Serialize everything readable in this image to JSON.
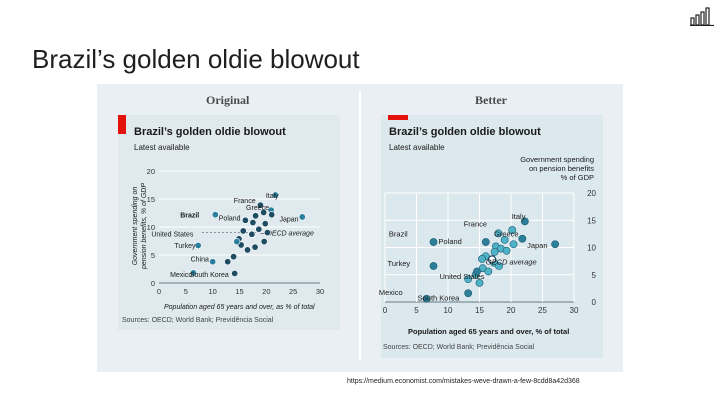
{
  "slide": {
    "title": "Brazil’s golden oldie blowout",
    "source_link": "https://medium.economist.com/mistakes-weve-drawn-a-few-8cdd8a42d368"
  },
  "colors": {
    "accent_red": "#e3120b",
    "dark_dot": "#1e4d63",
    "light_dot": "#4fb3c8",
    "panel_bg": "#e9eff2"
  },
  "logo_icon": "bar-chart-icon",
  "chart_data": [
    {
      "type": "scatter",
      "panel_heading": "Original",
      "title": "Brazil’s golden oldie blowout",
      "subtitle": "Latest available",
      "ylabel": "Government spending on pension benefits, % of GDP",
      "xlabel": "Population aged 65 years and over, as % of total",
      "source": "Sources: OECD; World Bank; Previdência Social",
      "xlim": [
        0,
        30
      ],
      "ylim": [
        0,
        20
      ],
      "x_ticks": [
        "0",
        "5",
        "10",
        "15",
        "20",
        "25",
        "30"
      ],
      "y_ticks": [
        "0",
        "5",
        "10",
        "15",
        "20"
      ],
      "average_label": "OECD average",
      "labels": [
        {
          "text": "Italy",
          "x": 22.3,
          "y": 15.7
        },
        {
          "text": "France",
          "x": 18,
          "y": 14.8
        },
        {
          "text": "Greece",
          "x": 20.5,
          "y": 13.6
        },
        {
          "text": "Brazil",
          "x": 7.5,
          "y": 12.2
        },
        {
          "text": "Poland",
          "x": 15.2,
          "y": 11.7
        },
        {
          "text": "Japan",
          "x": 26,
          "y": 11.5
        },
        {
          "text": "United States",
          "x": 6.4,
          "y": 8.8
        },
        {
          "text": "Turkey",
          "x": 6.8,
          "y": 6.8
        },
        {
          "text": "China",
          "x": 9.3,
          "y": 4.4
        },
        {
          "text": "Mexico",
          "x": 6.2,
          "y": 1.6
        },
        {
          "text": "South Korea",
          "x": 13,
          "y": 1.6
        }
      ],
      "points": [
        {
          "x": 21.7,
          "y": 15.7,
          "hl": true
        },
        {
          "x": 18.9,
          "y": 13.9
        },
        {
          "x": 20.9,
          "y": 13.0,
          "hl": true
        },
        {
          "x": 26.7,
          "y": 11.8,
          "hl": true
        },
        {
          "x": 10.5,
          "y": 12.2,
          "hl": true
        },
        {
          "x": 16.1,
          "y": 11.2
        },
        {
          "x": 19.5,
          "y": 12.6
        },
        {
          "x": 21.0,
          "y": 12.2
        },
        {
          "x": 18.0,
          "y": 12.0
        },
        {
          "x": 17.5,
          "y": 10.8
        },
        {
          "x": 19.8,
          "y": 10.6
        },
        {
          "x": 18.6,
          "y": 9.6
        },
        {
          "x": 20.2,
          "y": 9.0
        },
        {
          "x": 17.3,
          "y": 8.7
        },
        {
          "x": 15.7,
          "y": 9.3
        },
        {
          "x": 14.9,
          "y": 7.9
        },
        {
          "x": 19.6,
          "y": 7.4
        },
        {
          "x": 15.3,
          "y": 6.8
        },
        {
          "x": 17.9,
          "y": 6.4
        },
        {
          "x": 16.5,
          "y": 5.9
        },
        {
          "x": 14.5,
          "y": 7.4,
          "hl": true
        },
        {
          "x": 13.9,
          "y": 4.7
        },
        {
          "x": 12.8,
          "y": 3.8
        },
        {
          "x": 14.1,
          "y": 1.7
        },
        {
          "x": 10.0,
          "y": 3.8,
          "hl": true
        },
        {
          "x": 7.3,
          "y": 6.7,
          "hl": true
        },
        {
          "x": 6.4,
          "y": 1.8,
          "hl": true
        }
      ]
    },
    {
      "type": "scatter",
      "panel_heading": "Better",
      "title": "Brazil’s golden oldie blowout",
      "subtitle": "Latest available",
      "ylabel": "Government spending on pension benefits % of GDP",
      "xlabel": "Population aged 65 years and over, % of total",
      "source": "Sources: OECD; World Bank; Previdência Social",
      "xlim": [
        0,
        30
      ],
      "ylim": [
        0,
        20
      ],
      "x_ticks": [
        "0",
        "5",
        "10",
        "15",
        "20",
        "25",
        "30"
      ],
      "y_ticks": [
        "0",
        "5",
        "10",
        "15",
        "20"
      ],
      "average_label": "OECD average",
      "labels": [
        {
          "text": "Italy",
          "x": 22.3,
          "y": 15.8
        },
        {
          "text": "France",
          "x": 16.2,
          "y": 14.4
        },
        {
          "text": "Greece",
          "x": 21.2,
          "y": 12.6
        },
        {
          "text": "Brazil",
          "x": 3.6,
          "y": 12.6
        },
        {
          "text": "Poland",
          "x": 12.2,
          "y": 11.2
        },
        {
          "text": "Japan",
          "x": 25.8,
          "y": 10.5
        },
        {
          "text": "Turkey",
          "x": 4,
          "y": 7.2
        },
        {
          "text": "OECD average",
          "x": 16,
          "y": 7.4
        },
        {
          "text": "United States",
          "x": 15.8,
          "y": 4.8
        },
        {
          "text": "Mexico",
          "x": 2.8,
          "y": 1.8
        },
        {
          "text": "South Korea",
          "x": 11.8,
          "y": 0.8
        }
      ],
      "points": [
        {
          "x": 22.2,
          "y": 14.8,
          "hl": true
        },
        {
          "x": 20.2,
          "y": 13.2
        },
        {
          "x": 21.8,
          "y": 11.6,
          "hl": true
        },
        {
          "x": 27.0,
          "y": 10.6,
          "hl": true
        },
        {
          "x": 7.7,
          "y": 11.0,
          "hl": true
        },
        {
          "x": 16.0,
          "y": 11.0,
          "hl": true
        },
        {
          "x": 18.0,
          "y": 12.6
        },
        {
          "x": 19.0,
          "y": 11.4
        },
        {
          "x": 17.6,
          "y": 10.2
        },
        {
          "x": 18.4,
          "y": 9.8
        },
        {
          "x": 20.4,
          "y": 10.6
        },
        {
          "x": 19.3,
          "y": 9.4
        },
        {
          "x": 17.4,
          "y": 9.2
        },
        {
          "x": 16.0,
          "y": 8.4
        },
        {
          "x": 17.3,
          "y": 7.2
        },
        {
          "x": 15.4,
          "y": 7.9
        },
        {
          "x": 18.1,
          "y": 6.6
        },
        {
          "x": 15.5,
          "y": 6.2
        },
        {
          "x": 16.4,
          "y": 5.6
        },
        {
          "x": 14.4,
          "y": 5.0
        },
        {
          "x": 13.2,
          "y": 4.2
        },
        {
          "x": 15.0,
          "y": 3.5
        },
        {
          "x": 14.6,
          "y": 5.6,
          "hl": true
        },
        {
          "x": 13.2,
          "y": 1.6,
          "hl": true
        },
        {
          "x": 7.7,
          "y": 6.6,
          "hl": true
        },
        {
          "x": 6.6,
          "y": 0.6,
          "hl": true
        },
        {
          "x": 17.0,
          "y": 7.8,
          "avg": true
        }
      ]
    }
  ]
}
